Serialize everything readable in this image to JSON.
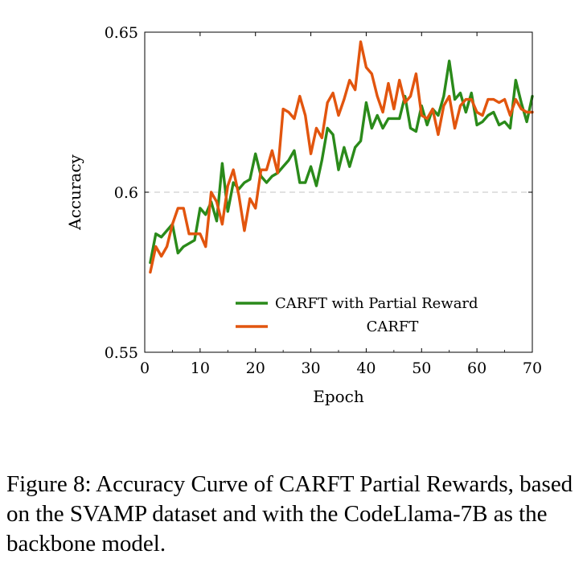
{
  "chart_data": {
    "type": "line",
    "title": "",
    "xlabel": "Epoch",
    "ylabel": "Accuracy",
    "xlim": [
      0,
      70
    ],
    "ylim": [
      0.55,
      0.65
    ],
    "xticks": [
      0,
      10,
      20,
      30,
      40,
      50,
      60,
      70
    ],
    "yticks": [
      0.55,
      0.6,
      0.65
    ],
    "xtick_labels": [
      "0",
      "10",
      "20",
      "30",
      "40",
      "50",
      "60",
      "70"
    ],
    "ytick_labels": [
      "0.55",
      "0.6",
      "0.65"
    ],
    "reference_line": 0.6,
    "legend_position": "bottom-right",
    "series": [
      {
        "name": "CARFT with Partial Reward",
        "color": "#2a8a1a",
        "x": [
          1,
          2,
          3,
          4,
          5,
          6,
          7,
          8,
          9,
          10,
          11,
          12,
          13,
          14,
          15,
          16,
          17,
          18,
          19,
          20,
          21,
          22,
          23,
          24,
          25,
          26,
          27,
          28,
          29,
          30,
          31,
          32,
          33,
          34,
          35,
          36,
          37,
          38,
          39,
          40,
          41,
          42,
          43,
          44,
          45,
          46,
          47,
          48,
          49,
          50,
          51,
          52,
          53,
          54,
          55,
          56,
          57,
          58,
          59,
          60,
          61,
          62,
          63,
          64,
          65,
          66,
          67,
          68,
          69,
          70
        ],
        "values": [
          0.578,
          0.587,
          0.586,
          0.588,
          0.59,
          0.581,
          0.583,
          0.584,
          0.585,
          0.595,
          0.593,
          0.597,
          0.591,
          0.609,
          0.594,
          0.603,
          0.601,
          0.603,
          0.604,
          0.612,
          0.605,
          0.603,
          0.605,
          0.606,
          0.608,
          0.61,
          0.613,
          0.603,
          0.603,
          0.608,
          0.602,
          0.61,
          0.62,
          0.618,
          0.607,
          0.614,
          0.608,
          0.614,
          0.616,
          0.628,
          0.62,
          0.624,
          0.62,
          0.623,
          0.623,
          0.623,
          0.63,
          0.62,
          0.619,
          0.627,
          0.621,
          0.626,
          0.624,
          0.63,
          0.641,
          0.629,
          0.631,
          0.625,
          0.631,
          0.621,
          0.622,
          0.624,
          0.625,
          0.621,
          0.622,
          0.62,
          0.635,
          0.628,
          0.622,
          0.63
        ]
      },
      {
        "name": "CARFT",
        "color": "#e2550e",
        "x": [
          1,
          2,
          3,
          4,
          5,
          6,
          7,
          8,
          9,
          10,
          11,
          12,
          13,
          14,
          15,
          16,
          17,
          18,
          19,
          20,
          21,
          22,
          23,
          24,
          25,
          26,
          27,
          28,
          29,
          30,
          31,
          32,
          33,
          34,
          35,
          36,
          37,
          38,
          39,
          40,
          41,
          42,
          43,
          44,
          45,
          46,
          47,
          48,
          49,
          50,
          51,
          52,
          53,
          54,
          55,
          56,
          57,
          58,
          59,
          60,
          61,
          62,
          63,
          64,
          65,
          66,
          67,
          68,
          69,
          70
        ],
        "values": [
          0.575,
          0.583,
          0.58,
          0.583,
          0.59,
          0.595,
          0.595,
          0.587,
          0.587,
          0.587,
          0.583,
          0.6,
          0.597,
          0.59,
          0.602,
          0.607,
          0.599,
          0.588,
          0.598,
          0.595,
          0.607,
          0.607,
          0.613,
          0.606,
          0.626,
          0.625,
          0.623,
          0.63,
          0.624,
          0.612,
          0.62,
          0.617,
          0.628,
          0.631,
          0.624,
          0.629,
          0.635,
          0.632,
          0.647,
          0.639,
          0.637,
          0.63,
          0.625,
          0.634,
          0.626,
          0.635,
          0.628,
          0.63,
          0.637,
          0.624,
          0.623,
          0.626,
          0.618,
          0.627,
          0.63,
          0.62,
          0.627,
          0.629,
          0.629,
          0.625,
          0.624,
          0.629,
          0.629,
          0.628,
          0.629,
          0.624,
          0.629,
          0.626,
          0.625,
          0.625
        ]
      }
    ]
  },
  "caption": "Figure 8: Accuracy Curve of CARFT Partial Rewards, based on the SVAMP dataset and with the CodeLlama-7B as the backbone model."
}
